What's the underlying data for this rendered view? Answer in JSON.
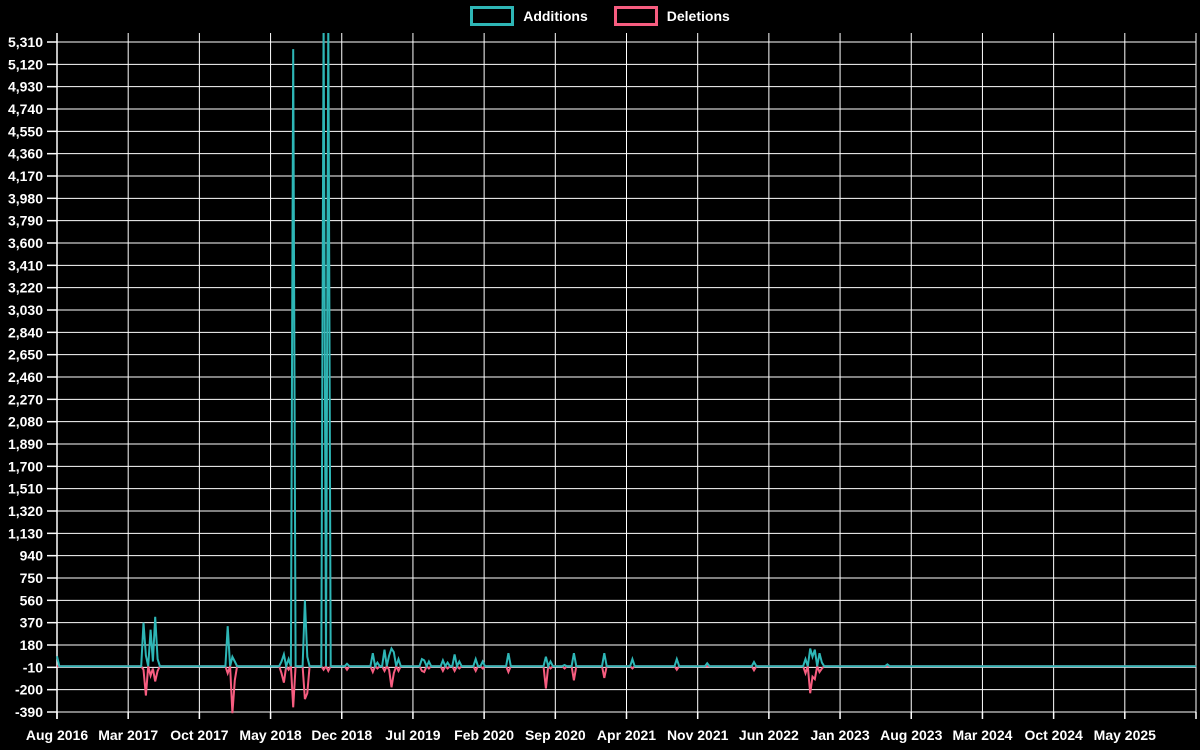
{
  "legend": {
    "items": [
      {
        "label": "Additions",
        "color": "#2eb6b6"
      },
      {
        "label": "Deletions",
        "color": "#f75d80"
      }
    ]
  },
  "colors": {
    "background": "#000000",
    "grid": "#ffffff",
    "axis": "#ffffff",
    "text": "#ffffff",
    "additions": "#2eb6b6",
    "deletions": "#f75d80"
  },
  "chart_data": {
    "type": "line",
    "title": "",
    "legend_position": "top-center",
    "grid": true,
    "x_axis": {
      "tick_labels": [
        "Aug 2016",
        "Mar 2017",
        "Oct 2017",
        "May 2018",
        "Dec 2018",
        "Jul 2019",
        "Feb 2020",
        "Sep 2020",
        "Apr 2021",
        "Nov 2021",
        "Jun 2022",
        "Jan 2023",
        "Aug 2023",
        "Mar 2024",
        "Oct 2024",
        "May 2025"
      ],
      "tick_interval_months": 7,
      "total_span_months": 112,
      "unlabeled_right_edge_gridline": true
    },
    "y_axis": {
      "min": -390,
      "max": 5310,
      "step": 190,
      "tick_labels": [
        "5,310",
        "5,120",
        "4,930",
        "4,740",
        "4,550",
        "4,360",
        "4,170",
        "3,980",
        "3,790",
        "3,600",
        "3,410",
        "3,220",
        "3,030",
        "2,840",
        "2,650",
        "2,460",
        "2,270",
        "2,080",
        "1,890",
        "1,700",
        "1,510",
        "1,320",
        "1,130",
        "940",
        "750",
        "560",
        "370",
        "180",
        "-10",
        "-200",
        "-390"
      ]
    },
    "series": [
      {
        "name": "Additions",
        "color": "#2eb6b6",
        "sign": "positive"
      },
      {
        "name": "Deletions",
        "color": "#f75d80",
        "sign": "negative"
      }
    ],
    "baseline_value": 0,
    "week_step_months": 0.23,
    "note_clipped_spikes": "two spikes near Oct-Nov 2018 exceed the 5,310 axis max and are clipped at plot top",
    "spikes": [
      {
        "m": 0.0,
        "a": 85,
        "d": 0
      },
      {
        "m": 8.5,
        "a": 370,
        "d": -30
      },
      {
        "m": 8.8,
        "a": 90,
        "d": -250
      },
      {
        "m": 9.1,
        "a": 310,
        "d": -80
      },
      {
        "m": 9.4,
        "a": 40,
        "d": -20
      },
      {
        "m": 9.7,
        "a": 420,
        "d": -130
      },
      {
        "m": 10.0,
        "a": 60,
        "d": -40
      },
      {
        "m": 16.9,
        "a": 340,
        "d": -60
      },
      {
        "m": 17.2,
        "a": 80,
        "d": -400
      },
      {
        "m": 17.5,
        "a": 40,
        "d": -120
      },
      {
        "m": 22.1,
        "a": 40,
        "d": -60
      },
      {
        "m": 22.4,
        "a": 100,
        "d": -140
      },
      {
        "m": 22.7,
        "a": 60,
        "d": -30
      },
      {
        "m": 23.3,
        "a": 5250,
        "d": -350
      },
      {
        "m": 24.4,
        "a": 560,
        "d": -280
      },
      {
        "m": 24.7,
        "a": 80,
        "d": -230
      },
      {
        "m": 26.3,
        "a": 5500,
        "d": -30
      },
      {
        "m": 26.7,
        "a": 5500,
        "d": -40
      },
      {
        "m": 28.5,
        "a": 20,
        "d": -30
      },
      {
        "m": 31.0,
        "a": 110,
        "d": -50
      },
      {
        "m": 31.5,
        "a": 30,
        "d": -20
      },
      {
        "m": 32.3,
        "a": 140,
        "d": -40
      },
      {
        "m": 32.6,
        "a": 90,
        "d": -30
      },
      {
        "m": 32.9,
        "a": 150,
        "d": -180
      },
      {
        "m": 33.2,
        "a": 120,
        "d": -60
      },
      {
        "m": 33.5,
        "a": 60,
        "d": -40
      },
      {
        "m": 35.8,
        "a": 60,
        "d": -40
      },
      {
        "m": 36.2,
        "a": 50,
        "d": -50
      },
      {
        "m": 36.6,
        "a": 40,
        "d": -20
      },
      {
        "m": 38.0,
        "a": 50,
        "d": -40
      },
      {
        "m": 38.4,
        "a": 30,
        "d": -20
      },
      {
        "m": 39.2,
        "a": 100,
        "d": -40
      },
      {
        "m": 39.6,
        "a": 40,
        "d": -20
      },
      {
        "m": 41.1,
        "a": 60,
        "d": -40
      },
      {
        "m": 41.9,
        "a": 40,
        "d": -20
      },
      {
        "m": 44.3,
        "a": 110,
        "d": -50
      },
      {
        "m": 48.0,
        "a": 80,
        "d": -190
      },
      {
        "m": 48.6,
        "a": 40,
        "d": -20
      },
      {
        "m": 50.0,
        "a": 10,
        "d": -20
      },
      {
        "m": 50.8,
        "a": 110,
        "d": -120
      },
      {
        "m": 53.9,
        "a": 110,
        "d": -100
      },
      {
        "m": 56.6,
        "a": 60,
        "d": -20
      },
      {
        "m": 60.9,
        "a": 60,
        "d": -30
      },
      {
        "m": 63.9,
        "a": 25,
        "d": 0
      },
      {
        "m": 68.6,
        "a": 35,
        "d": -35
      },
      {
        "m": 73.7,
        "a": 60,
        "d": -60
      },
      {
        "m": 74.0,
        "a": 150,
        "d": -230
      },
      {
        "m": 74.3,
        "a": 80,
        "d": -90
      },
      {
        "m": 74.6,
        "a": 140,
        "d": -110
      },
      {
        "m": 74.9,
        "a": 110,
        "d": -50
      },
      {
        "m": 75.2,
        "a": 30,
        "d": -20
      },
      {
        "m": 81.6,
        "a": 15,
        "d": 0
      }
    ]
  }
}
